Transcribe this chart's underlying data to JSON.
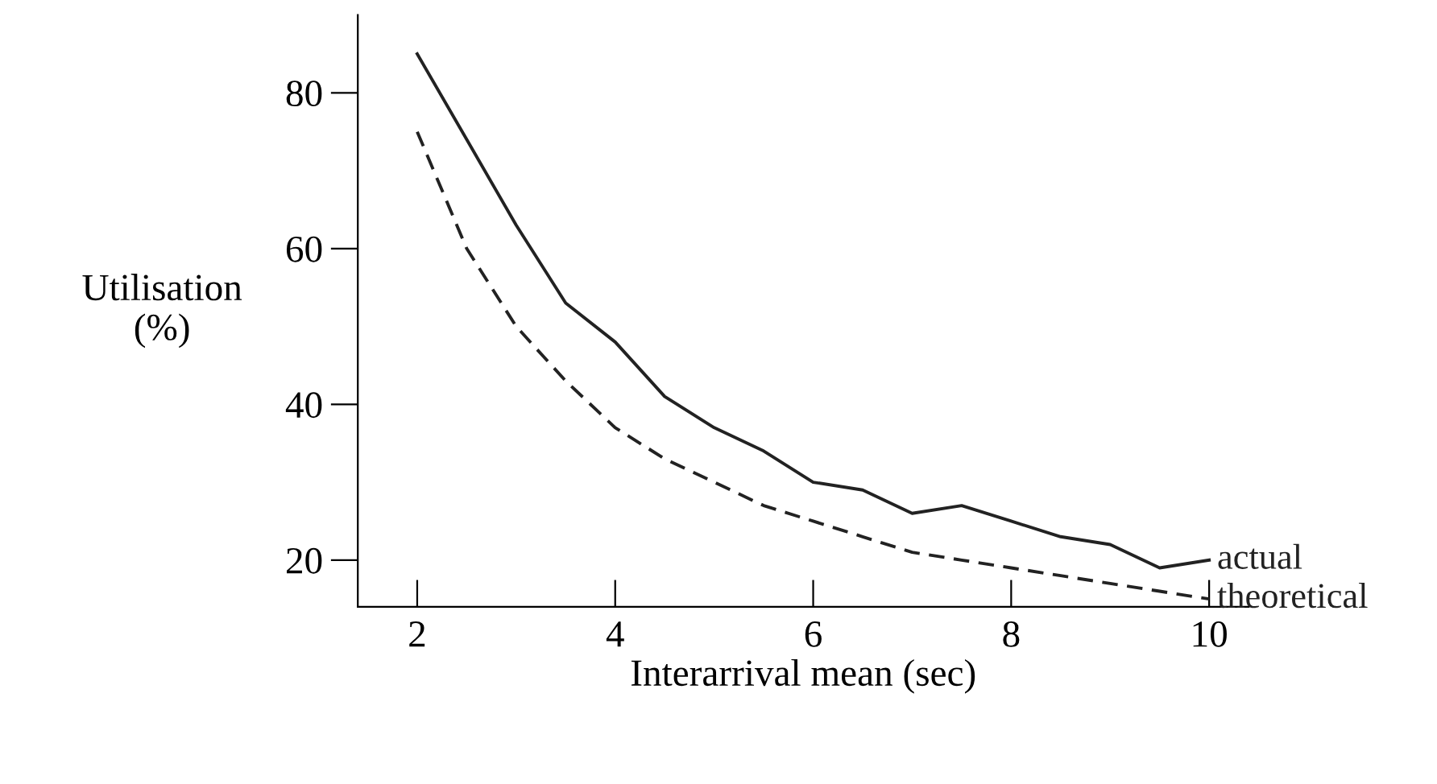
{
  "chart_data": {
    "type": "line",
    "xlabel": "Interarrival mean (sec)",
    "ylabel": "Utilisation\n(%)",
    "x": [
      2,
      2.5,
      3,
      3.5,
      4,
      4.5,
      5,
      5.5,
      6,
      6.5,
      7,
      7.5,
      8,
      8.5,
      9,
      9.5,
      10
    ],
    "series": [
      {
        "name": "actual",
        "color": "#222222",
        "line_style": "solid",
        "values": [
          85,
          74,
          63,
          53,
          48,
          41,
          37,
          34,
          30,
          29,
          26,
          27,
          25,
          23,
          22,
          19,
          20
        ]
      },
      {
        "name": "theoretical",
        "color": "#222222",
        "line_style": "dashed",
        "values": [
          75,
          60,
          50,
          43,
          37,
          33,
          30,
          27,
          25,
          23,
          21,
          20,
          19,
          18,
          17,
          16,
          15
        ]
      }
    ],
    "xlim": [
      1.4,
      10.4
    ],
    "ylim": [
      14,
      90
    ],
    "xticks": [
      2,
      4,
      6,
      8,
      10
    ],
    "yticks": [
      20,
      40,
      60,
      80
    ],
    "grid": false,
    "legend": false
  }
}
